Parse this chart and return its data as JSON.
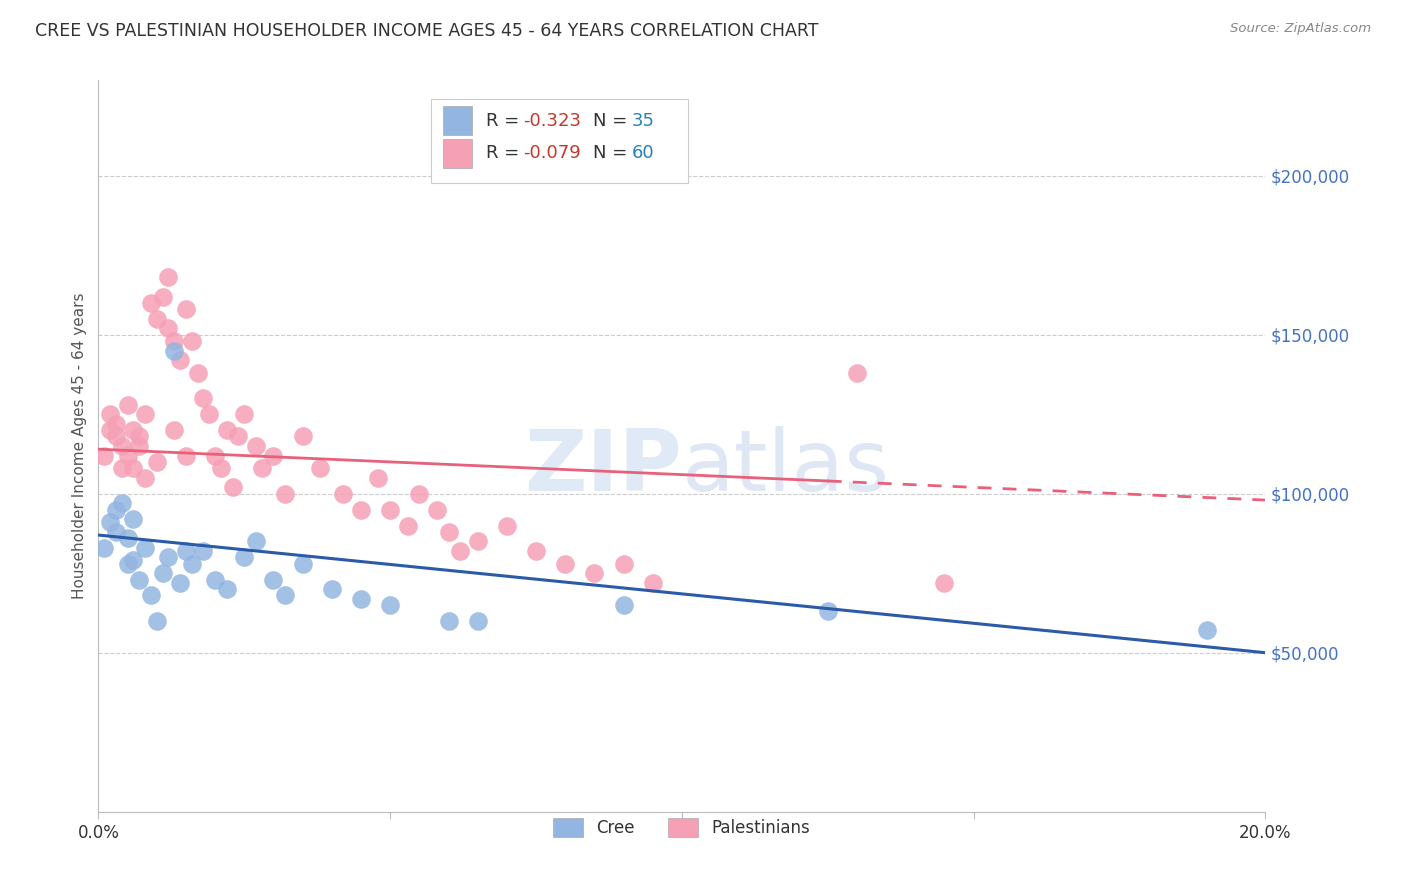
{
  "title": "CREE VS PALESTINIAN HOUSEHOLDER INCOME AGES 45 - 64 YEARS CORRELATION CHART",
  "source": "Source: ZipAtlas.com",
  "ylabel": "Householder Income Ages 45 - 64 years",
  "xlim": [
    0.0,
    0.2
  ],
  "ylim": [
    0,
    230000
  ],
  "cree_R": -0.323,
  "cree_N": 35,
  "pal_R": -0.079,
  "pal_N": 60,
  "cree_color": "#93b5e1",
  "pal_color": "#f5a0b5",
  "cree_line_color": "#2b5ba8",
  "pal_line_color": "#e8607a",
  "background_color": "#ffffff",
  "grid_color": "#cccccc",
  "right_axis_color": "#4472c4",
  "legend_R_color": "#c0392b",
  "legend_N_color": "#2980b9",
  "cree_line_y0": 87000,
  "cree_line_y1": 50000,
  "pal_line_y0": 114000,
  "pal_line_y1": 98000,
  "pal_line_solid_end": 0.125,
  "cree_x": [
    0.001,
    0.002,
    0.003,
    0.003,
    0.004,
    0.005,
    0.005,
    0.006,
    0.006,
    0.007,
    0.008,
    0.009,
    0.01,
    0.011,
    0.012,
    0.013,
    0.014,
    0.015,
    0.016,
    0.018,
    0.02,
    0.022,
    0.025,
    0.027,
    0.03,
    0.032,
    0.035,
    0.04,
    0.045,
    0.05,
    0.06,
    0.065,
    0.09,
    0.125,
    0.19
  ],
  "cree_y": [
    83000,
    91000,
    88000,
    95000,
    97000,
    78000,
    86000,
    79000,
    92000,
    73000,
    83000,
    68000,
    60000,
    75000,
    80000,
    145000,
    72000,
    82000,
    78000,
    82000,
    73000,
    70000,
    80000,
    85000,
    73000,
    68000,
    78000,
    70000,
    67000,
    65000,
    60000,
    60000,
    65000,
    63000,
    57000
  ],
  "pal_x": [
    0.001,
    0.002,
    0.002,
    0.003,
    0.003,
    0.004,
    0.004,
    0.005,
    0.005,
    0.006,
    0.006,
    0.007,
    0.007,
    0.008,
    0.008,
    0.009,
    0.01,
    0.01,
    0.011,
    0.012,
    0.012,
    0.013,
    0.013,
    0.014,
    0.015,
    0.015,
    0.016,
    0.017,
    0.018,
    0.019,
    0.02,
    0.021,
    0.022,
    0.023,
    0.024,
    0.025,
    0.027,
    0.028,
    0.03,
    0.032,
    0.035,
    0.038,
    0.042,
    0.045,
    0.048,
    0.05,
    0.053,
    0.055,
    0.058,
    0.06,
    0.062,
    0.065,
    0.07,
    0.075,
    0.08,
    0.085,
    0.09,
    0.095,
    0.13,
    0.145
  ],
  "pal_y": [
    112000,
    120000,
    125000,
    122000,
    118000,
    115000,
    108000,
    128000,
    112000,
    120000,
    108000,
    118000,
    115000,
    125000,
    105000,
    160000,
    155000,
    110000,
    162000,
    168000,
    152000,
    148000,
    120000,
    142000,
    158000,
    112000,
    148000,
    138000,
    130000,
    125000,
    112000,
    108000,
    120000,
    102000,
    118000,
    125000,
    115000,
    108000,
    112000,
    100000,
    118000,
    108000,
    100000,
    95000,
    105000,
    95000,
    90000,
    100000,
    95000,
    88000,
    82000,
    85000,
    90000,
    82000,
    78000,
    75000,
    78000,
    72000,
    138000,
    72000
  ]
}
